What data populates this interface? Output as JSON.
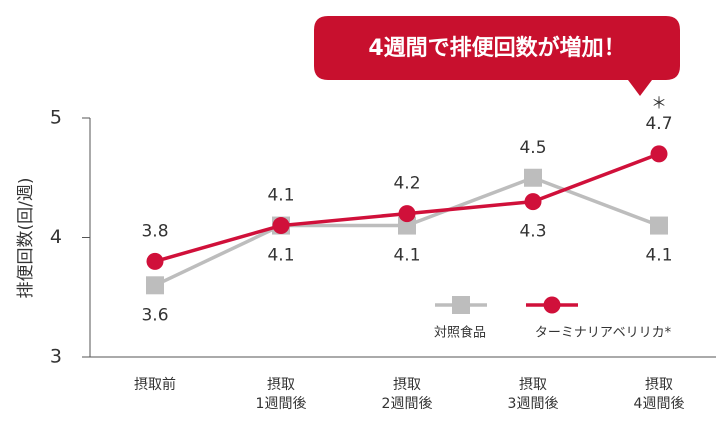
{
  "chart_data": {
    "type": "line",
    "annotation": "4週間で排便回数が増加！",
    "significance_mark": "＊",
    "ylabel": "排便回数(回/週)",
    "categories": [
      "摂取前",
      "摂取\n1週間後",
      "摂取\n2週間後",
      "摂取\n3週間後",
      "摂取\n4週間後"
    ],
    "series": [
      {
        "name": "対照食品",
        "color": "#bdbdbd",
        "marker": "square",
        "values": [
          3.6,
          4.1,
          4.1,
          4.5,
          4.1
        ]
      },
      {
        "name": "ターミナリアベリリカ*",
        "color": "#d0103a",
        "marker": "circle",
        "values": [
          3.8,
          4.1,
          4.2,
          4.3,
          4.7
        ]
      }
    ],
    "ylim": [
      3,
      5
    ],
    "yticks": [
      3,
      4,
      5
    ],
    "grid": false
  }
}
